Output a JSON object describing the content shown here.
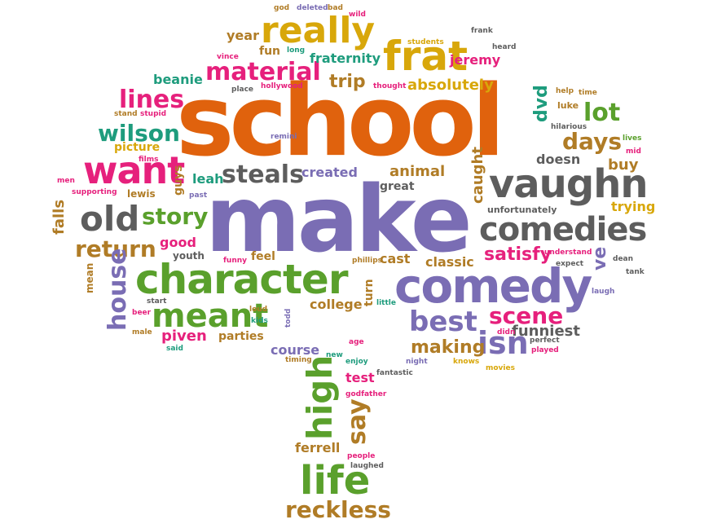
{
  "colors": {
    "orange": "#e0620d",
    "purple": "#7a6db4",
    "green": "#5aa02c",
    "teal": "#1e9c7d",
    "pink": "#e6207c",
    "gold": "#d8a70a",
    "brown": "#b07c26",
    "gray": "#5d5d5d"
  },
  "words": [
    {
      "text": "school",
      "color": "orange"
    },
    {
      "text": "make",
      "color": "purple"
    },
    {
      "text": "character",
      "color": "green"
    },
    {
      "text": "comedy",
      "color": "purple"
    },
    {
      "text": "comedies",
      "color": "gray"
    },
    {
      "text": "vaughn",
      "color": "gray"
    },
    {
      "text": "frat",
      "color": "gold"
    },
    {
      "text": "really",
      "color": "gold"
    },
    {
      "text": "want",
      "color": "pink"
    },
    {
      "text": "meant",
      "color": "green"
    },
    {
      "text": "life",
      "color": "green"
    },
    {
      "text": "high",
      "color": "green"
    },
    {
      "text": "old",
      "color": "gray"
    },
    {
      "text": "story",
      "color": "green"
    },
    {
      "text": "steals",
      "color": "gray"
    },
    {
      "text": "material",
      "color": "pink"
    },
    {
      "text": "lines",
      "color": "pink"
    },
    {
      "text": "wilson",
      "color": "teal"
    },
    {
      "text": "return",
      "color": "brown"
    },
    {
      "text": "best",
      "color": "purple"
    },
    {
      "text": "isn",
      "color": "purple"
    },
    {
      "text": "reckless",
      "color": "brown"
    },
    {
      "text": "house",
      "color": "purple"
    },
    {
      "text": "scene",
      "color": "pink"
    },
    {
      "text": "days",
      "color": "brown"
    },
    {
      "text": "lot",
      "color": "green"
    },
    {
      "text": "say",
      "color": "brown"
    },
    {
      "text": "satisfy",
      "color": "pink"
    },
    {
      "text": "making",
      "color": "brown"
    },
    {
      "text": "funniest",
      "color": "gray"
    },
    {
      "text": "dvd",
      "color": "teal"
    },
    {
      "text": "fraternity",
      "color": "teal"
    },
    {
      "text": "trip",
      "color": "brown"
    },
    {
      "text": "absolutely",
      "color": "gold"
    },
    {
      "text": "jeremy",
      "color": "pink"
    },
    {
      "text": "fun",
      "color": "brown"
    },
    {
      "text": "year",
      "color": "brown"
    },
    {
      "text": "beanie",
      "color": "teal"
    },
    {
      "text": "animal",
      "color": "brown"
    },
    {
      "text": "created",
      "color": "purple"
    },
    {
      "text": "leah",
      "color": "teal"
    },
    {
      "text": "great",
      "color": "gray"
    },
    {
      "text": "caught",
      "color": "brown"
    },
    {
      "text": "doesn",
      "color": "gray"
    },
    {
      "text": "buy",
      "color": "brown"
    },
    {
      "text": "trying",
      "color": "gold"
    },
    {
      "text": "classic",
      "color": "brown"
    },
    {
      "text": "cast",
      "color": "brown"
    },
    {
      "text": "college",
      "color": "brown"
    },
    {
      "text": "turn",
      "color": "brown"
    },
    {
      "text": "course",
      "color": "purple"
    },
    {
      "text": "test",
      "color": "pink"
    },
    {
      "text": "ferrell",
      "color": "brown"
    },
    {
      "text": "piven",
      "color": "pink"
    },
    {
      "text": "parties",
      "color": "brown"
    },
    {
      "text": "good",
      "color": "pink"
    },
    {
      "text": "falls",
      "color": "brown"
    },
    {
      "text": "ve",
      "color": "purple"
    },
    {
      "text": "picture",
      "color": "gold"
    },
    {
      "text": "guys",
      "color": "brown"
    },
    {
      "text": "lewis",
      "color": "brown"
    },
    {
      "text": "feel",
      "color": "brown"
    },
    {
      "text": "youth",
      "color": "gray"
    },
    {
      "text": "unfortunately",
      "color": "gray"
    },
    {
      "text": "mean",
      "color": "brown"
    },
    {
      "text": "luke",
      "color": "brown"
    },
    {
      "text": "hilarious",
      "color": "gray"
    },
    {
      "text": "help",
      "color": "brown"
    },
    {
      "text": "time",
      "color": "brown"
    },
    {
      "text": "lives",
      "color": "green"
    },
    {
      "text": "mid",
      "color": "pink"
    },
    {
      "text": "heard",
      "color": "gray"
    },
    {
      "text": "frank",
      "color": "gray"
    },
    {
      "text": "students",
      "color": "gold"
    },
    {
      "text": "thought",
      "color": "pink"
    },
    {
      "text": "god",
      "color": "brown"
    },
    {
      "text": "deleted",
      "color": "purple"
    },
    {
      "text": "bad",
      "color": "brown"
    },
    {
      "text": "wild",
      "color": "pink"
    },
    {
      "text": "long",
      "color": "teal"
    },
    {
      "text": "vince",
      "color": "pink"
    },
    {
      "text": "place",
      "color": "gray"
    },
    {
      "text": "hollywood",
      "color": "pink"
    },
    {
      "text": "remini",
      "color": "purple"
    },
    {
      "text": "stand",
      "color": "brown"
    },
    {
      "text": "stupid",
      "color": "pink"
    },
    {
      "text": "films",
      "color": "pink"
    },
    {
      "text": "men",
      "color": "pink"
    },
    {
      "text": "supporting",
      "color": "pink"
    },
    {
      "text": "past",
      "color": "purple"
    },
    {
      "text": "funny",
      "color": "pink"
    },
    {
      "text": "phillips",
      "color": "brown"
    },
    {
      "text": "start",
      "color": "gray"
    },
    {
      "text": "beer",
      "color": "pink"
    },
    {
      "text": "male",
      "color": "brown"
    },
    {
      "text": "said",
      "color": "teal"
    },
    {
      "text": "loud",
      "color": "brown"
    },
    {
      "text": "kids",
      "color": "teal"
    },
    {
      "text": "todd",
      "color": "purple"
    },
    {
      "text": "little",
      "color": "teal"
    },
    {
      "text": "timing",
      "color": "brown"
    },
    {
      "text": "new",
      "color": "teal"
    },
    {
      "text": "age",
      "color": "pink"
    },
    {
      "text": "enjoy",
      "color": "teal"
    },
    {
      "text": "night",
      "color": "purple"
    },
    {
      "text": "knows",
      "color": "gold"
    },
    {
      "text": "movies",
      "color": "gold"
    },
    {
      "text": "played",
      "color": "pink"
    },
    {
      "text": "perfect",
      "color": "gray"
    },
    {
      "text": "didn",
      "color": "pink"
    },
    {
      "text": "fantastic",
      "color": "gray"
    },
    {
      "text": "godfather",
      "color": "pink"
    },
    {
      "text": "people",
      "color": "pink"
    },
    {
      "text": "laughed",
      "color": "gray"
    },
    {
      "text": "understand",
      "color": "pink"
    },
    {
      "text": "expect",
      "color": "gray"
    },
    {
      "text": "dean",
      "color": "gray"
    },
    {
      "text": "tank",
      "color": "gray"
    },
    {
      "text": "laugh",
      "color": "purple"
    }
  ]
}
